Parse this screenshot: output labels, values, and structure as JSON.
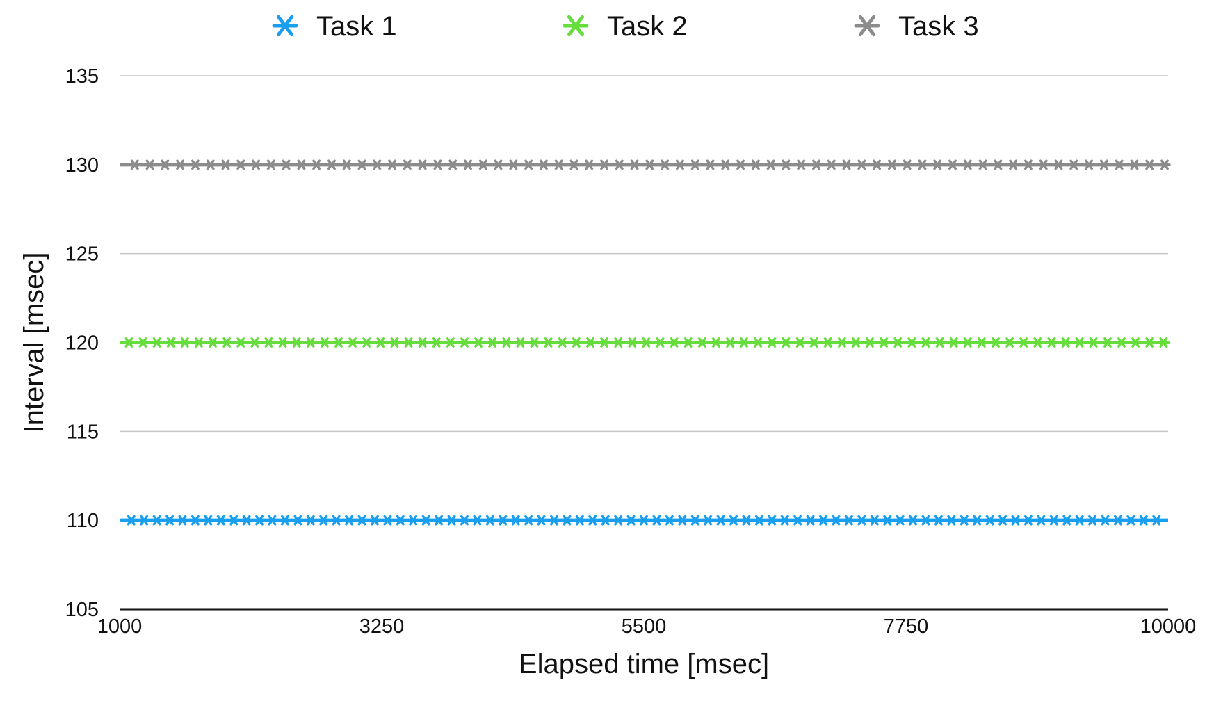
{
  "chart_data": {
    "type": "line",
    "title": "",
    "xlabel": "Elapsed time [msec]",
    "ylabel": "Interval [msec]",
    "xlim": [
      1000,
      10000
    ],
    "ylim": [
      105,
      135
    ],
    "xticks": [
      1000,
      3250,
      5500,
      7750,
      10000
    ],
    "yticks": [
      105,
      110,
      115,
      120,
      125,
      130,
      135
    ],
    "grid": "horizontal",
    "legend_position": "top",
    "marker": "asterisk",
    "series": [
      {
        "name": "Task 1",
        "color": "#1a9ff0",
        "period": 110,
        "x_start": 1100,
        "x_end": 10000,
        "y": 110
      },
      {
        "name": "Task 2",
        "color": "#66dd3d",
        "period": 120,
        "x_start": 1080,
        "x_end": 10000,
        "y": 120
      },
      {
        "name": "Task 3",
        "color": "#8c8c8c",
        "period": 130,
        "x_start": 1130,
        "x_end": 10000,
        "y": 130
      }
    ]
  }
}
